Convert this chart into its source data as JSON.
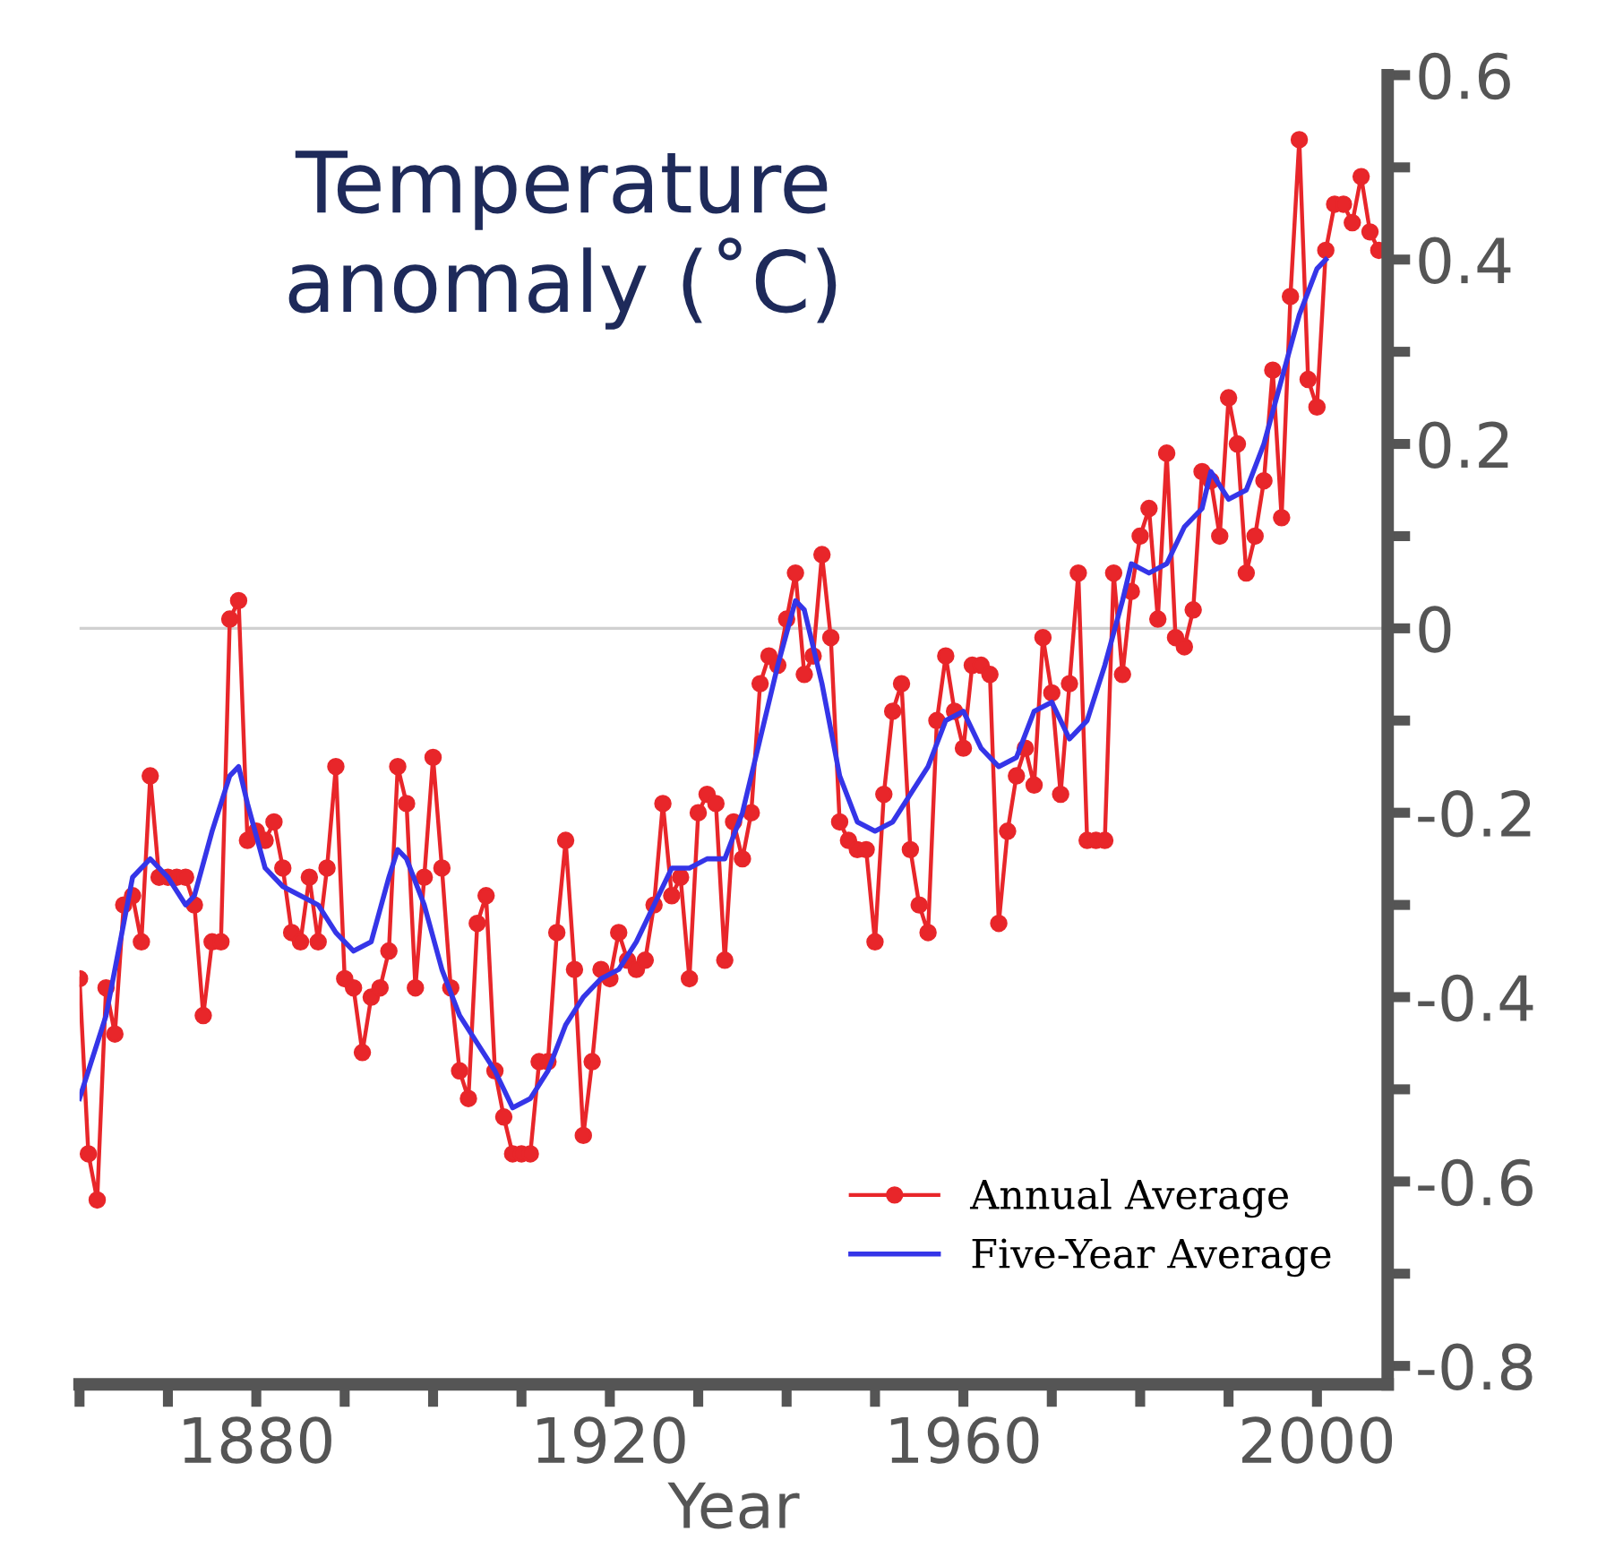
{
  "chart_data": {
    "type": "line",
    "title": "Temperature\nanomaly (˚C)",
    "xlabel": "Year",
    "series": [
      {
        "name": "Annual Average",
        "color": "#e8262a",
        "marker": "circle",
        "x": [
          1860,
          1861,
          1862,
          1863,
          1864,
          1865,
          1866,
          1867,
          1868,
          1869,
          1870,
          1871,
          1872,
          1873,
          1874,
          1875,
          1876,
          1877,
          1878,
          1879,
          1880,
          1881,
          1882,
          1883,
          1884,
          1885,
          1886,
          1887,
          1888,
          1889,
          1890,
          1891,
          1892,
          1893,
          1894,
          1895,
          1896,
          1897,
          1898,
          1899,
          1900,
          1901,
          1902,
          1903,
          1904,
          1905,
          1906,
          1907,
          1908,
          1909,
          1910,
          1911,
          1912,
          1913,
          1914,
          1915,
          1916,
          1917,
          1918,
          1919,
          1920,
          1921,
          1922,
          1923,
          1924,
          1925,
          1926,
          1927,
          1928,
          1929,
          1930,
          1931,
          1932,
          1933,
          1934,
          1935,
          1936,
          1937,
          1938,
          1939,
          1940,
          1941,
          1942,
          1943,
          1944,
          1945,
          1946,
          1947,
          1948,
          1949,
          1950,
          1951,
          1952,
          1953,
          1954,
          1955,
          1956,
          1957,
          1958,
          1959,
          1960,
          1961,
          1962,
          1963,
          1964,
          1965,
          1966,
          1967,
          1968,
          1969,
          1970,
          1971,
          1972,
          1973,
          1974,
          1975,
          1976,
          1977,
          1978,
          1979,
          1980,
          1981,
          1982,
          1983,
          1984,
          1985,
          1986,
          1987,
          1988,
          1989,
          1990,
          1991,
          1992,
          1993,
          1994,
          1995,
          1996,
          1997,
          1998,
          1999,
          2000,
          2001,
          2002,
          2003,
          2004,
          2005,
          2006,
          2007
        ],
        "values": [
          -0.38,
          -0.57,
          -0.62,
          -0.39,
          -0.44,
          -0.3,
          -0.29,
          -0.34,
          -0.16,
          -0.27,
          -0.27,
          -0.27,
          -0.27,
          -0.3,
          -0.42,
          -0.34,
          -0.34,
          0.01,
          0.03,
          -0.23,
          -0.22,
          -0.23,
          -0.21,
          -0.26,
          -0.33,
          -0.34,
          -0.27,
          -0.34,
          -0.26,
          -0.15,
          -0.38,
          -0.39,
          -0.46,
          -0.4,
          -0.39,
          -0.35,
          -0.15,
          -0.19,
          -0.39,
          -0.27,
          -0.14,
          -0.26,
          -0.39,
          -0.48,
          -0.51,
          -0.32,
          -0.29,
          -0.48,
          -0.53,
          -0.57,
          -0.57,
          -0.57,
          -0.47,
          -0.47,
          -0.33,
          -0.23,
          -0.37,
          -0.55,
          -0.47,
          -0.37,
          -0.38,
          -0.33,
          -0.36,
          -0.37,
          -0.36,
          -0.3,
          -0.19,
          -0.29,
          -0.27,
          -0.38,
          -0.2,
          -0.18,
          -0.19,
          -0.36,
          -0.21,
          -0.25,
          -0.2,
          -0.06,
          -0.03,
          -0.04,
          0.01,
          0.06,
          -0.05,
          -0.03,
          0.08,
          -0.01,
          -0.21,
          -0.23,
          -0.24,
          -0.24,
          -0.34,
          -0.18,
          -0.09,
          -0.06,
          -0.24,
          -0.3,
          -0.33,
          -0.1,
          -0.03,
          -0.09,
          -0.13,
          -0.04,
          -0.04,
          -0.05,
          -0.32,
          -0.22,
          -0.16,
          -0.13,
          -0.17,
          -0.01,
          -0.07,
          -0.18,
          -0.06,
          0.06,
          -0.23,
          -0.23,
          -0.23,
          0.06,
          -0.05,
          0.04,
          0.1,
          0.13,
          0.01,
          0.19,
          -0.01,
          -0.02,
          0.02,
          0.17,
          0.16,
          0.1,
          0.25,
          0.2,
          0.06,
          0.1,
          0.16,
          0.28,
          0.12,
          0.36,
          0.53,
          0.27,
          0.24,
          0.41,
          0.46,
          0.46,
          0.44,
          0.49,
          0.43,
          0.41
        ]
      },
      {
        "name": "Five-Year Average",
        "color": "#3535e8",
        "marker": "none",
        "x": [
          1860,
          1863,
          1865,
          1866,
          1868,
          1870,
          1872,
          1873,
          1875,
          1877,
          1878,
          1879,
          1881,
          1883,
          1885,
          1887,
          1889,
          1891,
          1893,
          1895,
          1896,
          1897,
          1899,
          1901,
          1903,
          1905,
          1907,
          1909,
          1911,
          1913,
          1915,
          1917,
          1919,
          1921,
          1923,
          1925,
          1927,
          1929,
          1931,
          1933,
          1935,
          1937,
          1939,
          1941,
          1942,
          1944,
          1946,
          1948,
          1950,
          1952,
          1954,
          1956,
          1958,
          1960,
          1962,
          1964,
          1966,
          1968,
          1970,
          1972,
          1974,
          1976,
          1978,
          1979,
          1981,
          1983,
          1985,
          1987,
          1988,
          1990,
          1992,
          1994,
          1996,
          1998,
          2000,
          2001
        ],
        "values": [
          -0.51,
          -0.42,
          -0.32,
          -0.27,
          -0.25,
          -0.27,
          -0.3,
          -0.29,
          -0.22,
          -0.16,
          -0.15,
          -0.19,
          -0.26,
          -0.28,
          -0.29,
          -0.3,
          -0.33,
          -0.35,
          -0.34,
          -0.27,
          -0.24,
          -0.25,
          -0.3,
          -0.37,
          -0.42,
          -0.45,
          -0.48,
          -0.52,
          -0.51,
          -0.48,
          -0.43,
          -0.4,
          -0.38,
          -0.37,
          -0.34,
          -0.3,
          -0.26,
          -0.26,
          -0.25,
          -0.25,
          -0.2,
          -0.12,
          -0.04,
          0.03,
          0.02,
          -0.06,
          -0.16,
          -0.21,
          -0.22,
          -0.21,
          -0.18,
          -0.15,
          -0.1,
          -0.09,
          -0.13,
          -0.15,
          -0.14,
          -0.09,
          -0.08,
          -0.12,
          -0.1,
          -0.04,
          0.03,
          0.07,
          0.06,
          0.07,
          0.11,
          0.13,
          0.17,
          0.14,
          0.15,
          0.2,
          0.27,
          0.34,
          0.39,
          0.4
        ]
      }
    ],
    "xlim": [
      1860,
      2008
    ],
    "xticks": [
      {
        "value": 1860,
        "label": null
      },
      {
        "value": 1870,
        "label": null
      },
      1880,
      {
        "value": 1890,
        "label": null
      },
      {
        "value": 1900,
        "label": null
      },
      {
        "value": 1910,
        "label": null
      },
      1920,
      {
        "value": 1930,
        "label": null
      },
      {
        "value": 1940,
        "label": null
      },
      {
        "value": 1950,
        "label": null
      },
      1960,
      {
        "value": 1970,
        "label": null
      },
      {
        "value": 1980,
        "label": null
      },
      {
        "value": 1990,
        "label": null
      },
      2000
    ],
    "ylim": [
      -0.82,
      0.6
    ],
    "yticks": [
      {
        "value": -0.8,
        "label": "-0.8"
      },
      {
        "value": -0.7,
        "label": null
      },
      {
        "value": -0.6,
        "label": "-0.6"
      },
      {
        "value": -0.5,
        "label": null
      },
      {
        "value": -0.4,
        "label": "-0.4"
      },
      {
        "value": -0.3,
        "label": null
      },
      {
        "value": -0.2,
        "label": "-0.2"
      },
      {
        "value": -0.1,
        "label": null
      },
      0,
      {
        "value": 0.1,
        "label": null
      },
      {
        "value": 0.2,
        "label": "0.2"
      },
      {
        "value": 0.3,
        "label": null
      },
      {
        "value": 0.4,
        "label": "0.4"
      },
      {
        "value": 0.5,
        "label": null
      },
      {
        "value": 0.6,
        "label": "0.6"
      }
    ],
    "ref_lines": [
      {
        "axis": "y",
        "value": 0,
        "color": "#d0d0d0"
      }
    ],
    "legend": "bottom right",
    "grid": false
  }
}
